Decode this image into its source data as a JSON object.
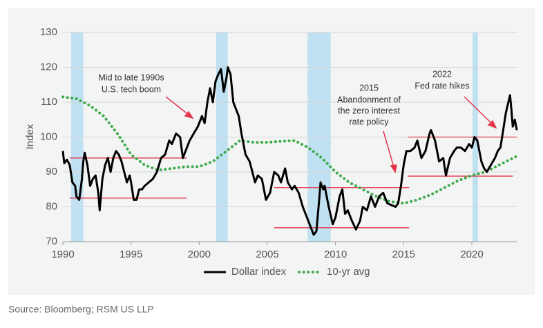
{
  "chart_data": {
    "type": "line",
    "y_label": "Index",
    "source": "Source: Bloomberg; RSM US LLP",
    "xlim": [
      1990,
      2023.3
    ],
    "xticks": [
      1990,
      1995,
      2000,
      2005,
      2010,
      2015,
      2020
    ],
    "ylim": [
      70,
      130
    ],
    "yticks": [
      70,
      80,
      90,
      100,
      110,
      120,
      130
    ],
    "grid": true,
    "shaded_periods": [
      [
        1990.6,
        1991.5
      ],
      [
        2001.25,
        2002.1
      ],
      [
        2007.95,
        2009.65
      ],
      [
        2020.05,
        2020.45
      ]
    ],
    "shade_color": "#bfe1f2",
    "reference_color": "#e3344a",
    "reference_lines": [
      {
        "y": 94,
        "x": [
          1990.5,
          1999.1
        ]
      },
      {
        "y": 82.5,
        "x": [
          1990.5,
          1999.1
        ]
      },
      {
        "y": 85.5,
        "x": [
          2005.5,
          2015.4
        ]
      },
      {
        "y": 74,
        "x": [
          2005.5,
          2015.4
        ]
      },
      {
        "y": 100,
        "x": [
          2015.3,
          2023.3
        ]
      },
      {
        "y": 88.8,
        "x": [
          2015.3,
          2023.0
        ]
      }
    ],
    "annotations": [
      [
        "Mid to late 1990s",
        "U.S. tech boom"
      ],
      [
        "2015",
        "Abandonment of",
        "the zero interest",
        "rate policy"
      ],
      [
        "2022",
        "Fed rate hikes"
      ]
    ],
    "legend": "bottom",
    "series": [
      {
        "name": "Dollar index",
        "color": "#000000",
        "style": "solid",
        "x": [
          1990.0,
          1990.1,
          1990.3,
          1990.5,
          1990.7,
          1990.9,
          1991.0,
          1991.2,
          1991.4,
          1991.5,
          1991.6,
          1991.8,
          1992.0,
          1992.2,
          1992.4,
          1992.6,
          1992.7,
          1992.9,
          1993.1,
          1993.3,
          1993.5,
          1993.7,
          1993.9,
          1994.1,
          1994.3,
          1994.5,
          1994.7,
          1994.9,
          1995.0,
          1995.2,
          1995.4,
          1995.6,
          1995.8,
          1996.0,
          1996.3,
          1996.6,
          1996.9,
          1997.2,
          1997.5,
          1997.8,
          1998.0,
          1998.3,
          1998.6,
          1998.8,
          1999.0,
          1999.3,
          1999.6,
          1999.9,
          2000.2,
          2000.4,
          2000.6,
          2000.8,
          2001.0,
          2001.2,
          2001.4,
          2001.6,
          2001.8,
          2002.0,
          2002.1,
          2002.3,
          2002.5,
          2002.7,
          2002.9,
          2003.1,
          2003.4,
          2003.7,
          2003.9,
          2004.1,
          2004.3,
          2004.6,
          2004.9,
          2005.2,
          2005.5,
          2005.8,
          2006.0,
          2006.3,
          2006.5,
          2006.8,
          2007.0,
          2007.3,
          2007.6,
          2007.9,
          2008.2,
          2008.4,
          2008.6,
          2008.8,
          2008.9,
          2009.1,
          2009.2,
          2009.5,
          2009.8,
          2010.0,
          2010.3,
          2010.5,
          2010.7,
          2010.9,
          2011.2,
          2011.5,
          2011.8,
          2012.0,
          2012.3,
          2012.6,
          2012.9,
          2013.2,
          2013.5,
          2013.8,
          2014.1,
          2014.4,
          2014.6,
          2014.8,
          2015.0,
          2015.2,
          2015.5,
          2015.8,
          2016.0,
          2016.3,
          2016.6,
          2016.9,
          2017.0,
          2017.3,
          2017.6,
          2017.9,
          2018.1,
          2018.4,
          2018.7,
          2018.9,
          2019.2,
          2019.5,
          2019.8,
          2020.0,
          2020.2,
          2020.4,
          2020.7,
          2020.9,
          2021.1,
          2021.4,
          2021.7,
          2021.9,
          2022.1,
          2022.3,
          2022.5,
          2022.8,
          2022.9,
          2023.0,
          2023.15,
          2023.3
        ],
        "values": [
          96,
          92.5,
          93.5,
          92,
          87,
          86,
          83,
          82,
          88,
          93,
          95.5,
          92,
          86,
          88,
          89,
          84,
          79,
          88,
          92,
          94,
          90,
          94,
          96,
          95,
          93,
          90,
          87,
          89,
          87,
          82,
          82,
          85,
          85,
          86,
          87,
          88,
          90,
          94,
          95,
          99,
          98,
          101,
          100,
          94,
          96,
          99,
          101,
          103,
          106,
          104,
          110,
          114,
          110,
          116,
          118,
          119.5,
          113,
          117,
          120,
          118,
          110,
          108,
          106,
          101,
          95,
          93,
          90,
          87,
          89,
          88,
          82,
          84,
          90,
          89,
          87,
          91,
          87,
          85,
          86,
          84,
          80,
          77,
          74,
          72,
          73,
          82,
          87,
          85,
          86,
          80,
          75,
          77,
          83,
          85,
          78,
          79,
          76,
          73.5,
          76,
          80,
          79,
          83,
          80,
          83,
          84,
          81,
          80.5,
          80,
          81,
          86,
          92,
          96,
          96,
          97,
          99,
          94,
          96,
          101,
          102,
          99,
          93,
          94,
          89,
          94,
          96,
          97,
          97,
          96,
          98,
          97,
          100,
          99,
          93,
          91,
          90,
          92,
          94,
          96,
          97,
          102,
          107,
          112,
          108,
          103,
          105,
          102
        ]
      },
      {
        "name": "10-yr avg",
        "color": "#3daa4a",
        "style": "dotted",
        "x": [
          1990,
          1991,
          1992,
          1993,
          1994,
          1995,
          1996,
          1997,
          1998,
          1999,
          2000,
          2001,
          2002,
          2003,
          2004,
          2005,
          2006,
          2007,
          2008,
          2009,
          2010,
          2011,
          2012,
          2013,
          2014,
          2015,
          2016,
          2017,
          2018,
          2019,
          2020,
          2021,
          2022,
          2023.3
        ],
        "values": [
          111.5,
          111,
          109,
          106,
          101,
          95,
          92,
          90.5,
          91,
          91.5,
          91.5,
          93,
          96,
          99,
          98.5,
          98.5,
          98.8,
          99,
          97,
          94,
          90,
          87,
          85,
          83,
          81.5,
          81,
          82,
          83.5,
          85.5,
          87.5,
          89,
          90,
          92,
          94.5
        ]
      }
    ]
  }
}
